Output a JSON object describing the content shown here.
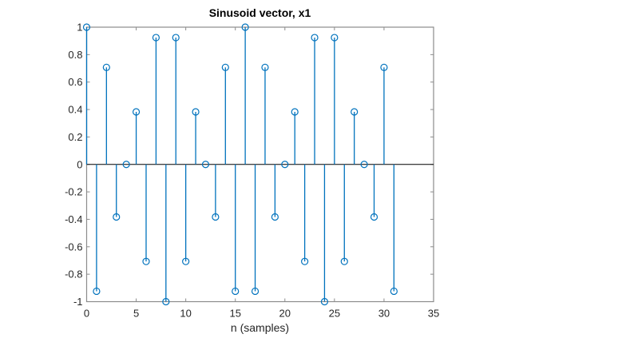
{
  "chart_data": {
    "type": "stem",
    "title": "Sinusoid vector, x1",
    "xlabel": "n (samples)",
    "ylabel": "",
    "xlim": [
      0,
      35
    ],
    "ylim": [
      -1,
      1
    ],
    "xticks": [
      0,
      5,
      10,
      15,
      20,
      25,
      30,
      35
    ],
    "yticks": [
      -1,
      -0.8,
      -0.6,
      -0.4,
      -0.2,
      0,
      0.2,
      0.4,
      0.6,
      0.8,
      1
    ],
    "grid": false,
    "legend": null,
    "series": [
      {
        "name": "x1",
        "color": "#0072BD",
        "marker": "circle-open",
        "x": [
          0,
          1,
          2,
          3,
          4,
          5,
          6,
          7,
          8,
          9,
          10,
          11,
          12,
          13,
          14,
          15,
          16,
          17,
          18,
          19,
          20,
          21,
          22,
          23,
          24,
          25,
          26,
          27,
          28,
          29,
          30,
          31
        ],
        "values": [
          1,
          -0.924,
          0.707,
          -0.383,
          0,
          0.383,
          -0.707,
          0.924,
          -1,
          0.924,
          -0.707,
          0.383,
          0,
          -0.383,
          0.707,
          -0.924,
          1,
          -0.924,
          0.707,
          -0.383,
          0,
          0.383,
          -0.707,
          0.924,
          -1,
          0.924,
          -0.707,
          0.383,
          0,
          -0.383,
          0.707,
          -0.924
        ]
      }
    ]
  },
  "colors": {
    "stem": "#0072BD",
    "axes": "#262626",
    "baseline": "#000000"
  }
}
